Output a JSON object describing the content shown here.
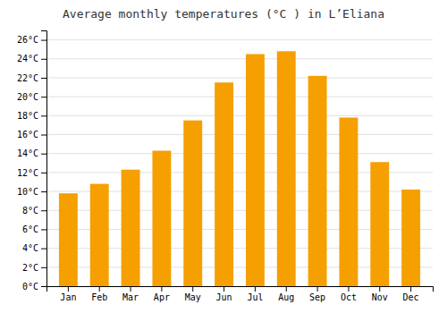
{
  "chart_data": {
    "type": "bar",
    "title": "Average monthly temperatures (°C ) in L’Eliana",
    "categories": [
      "Jan",
      "Feb",
      "Mar",
      "Apr",
      "May",
      "Jun",
      "Jul",
      "Aug",
      "Sep",
      "Oct",
      "Nov",
      "Dec"
    ],
    "values": [
      9.8,
      10.8,
      12.3,
      14.3,
      17.5,
      21.5,
      24.5,
      24.8,
      22.2,
      17.8,
      13.1,
      10.2
    ],
    "color": "#F5A000",
    "ylim": [
      0,
      27
    ],
    "yticks": [
      {
        "value": 0,
        "label": "0°C"
      },
      {
        "value": 2,
        "label": "2°C"
      },
      {
        "value": 4,
        "label": "4°C"
      },
      {
        "value": 6,
        "label": "6°C"
      },
      {
        "value": 8,
        "label": "8°C"
      },
      {
        "value": 10,
        "label": "10°C"
      },
      {
        "value": 12,
        "label": "12°C"
      },
      {
        "value": 14,
        "label": "14°C"
      },
      {
        "value": 16,
        "label": "16°C"
      },
      {
        "value": 18,
        "label": "18°C"
      },
      {
        "value": 20,
        "label": "20°C"
      },
      {
        "value": 22,
        "label": "22°C"
      },
      {
        "value": 24,
        "label": "24°C"
      },
      {
        "value": 26,
        "label": "26°C"
      }
    ],
    "grid": true
  }
}
